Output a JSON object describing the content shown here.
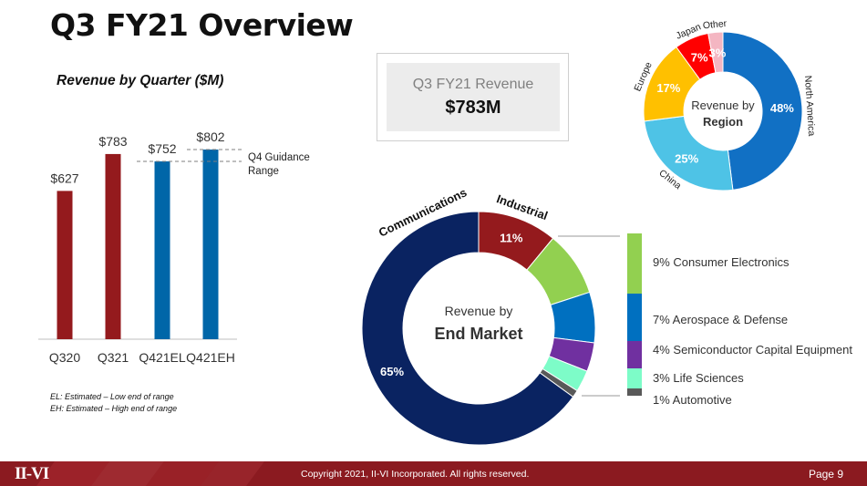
{
  "page": {
    "title": "Q3 FY21 Overview",
    "footer": {
      "copyright": "Copyright 2021, II-VI Incorporated. All rights reserved.",
      "page_number": "Page 9",
      "logo": "II-VI"
    }
  },
  "revenue_box": {
    "label": "Q3 FY21 Revenue",
    "value": "$783M"
  },
  "footnotes": [
    "EL: Estimated – Low end of range",
    "EH: Estimated – High end of range"
  ],
  "chart_data": [
    {
      "type": "bar",
      "title": "Revenue by Quarter ($M)",
      "categories": [
        "Q320",
        "Q321",
        "Q421EL",
        "Q421EH"
      ],
      "values": [
        627,
        783,
        752,
        802
      ],
      "data_labels": [
        "$627",
        "$783",
        "$752",
        "$802"
      ],
      "colors": [
        "#941a1d",
        "#941a1d",
        "#0066a8",
        "#0066a8"
      ],
      "ylim": [
        0,
        802
      ],
      "annotation": "Q4 Guidance Range",
      "annotation_range": [
        752,
        802
      ],
      "xlabel": "",
      "ylabel": ""
    },
    {
      "type": "pie",
      "subtype": "donut",
      "title": "Revenue by Region",
      "center_line1": "Revenue by",
      "center_line2": "Region",
      "slices": [
        {
          "name": "North America",
          "value": 48,
          "label": "48%",
          "color": "#1170c4"
        },
        {
          "name": "China",
          "value": 25,
          "label": "25%",
          "color": "#4ec3e6"
        },
        {
          "name": "Europe",
          "value": 17,
          "label": "17%",
          "color": "#ffc000"
        },
        {
          "name": "Japan",
          "value": 7,
          "label": "7%",
          "color": "#ff0000"
        },
        {
          "name": "Other",
          "value": 3,
          "label": "3%",
          "color": "#f4b6c2"
        }
      ]
    },
    {
      "type": "pie",
      "subtype": "donut",
      "title": "Revenue by End Market",
      "center_line1": "Revenue by",
      "center_line2": "End Market",
      "slices": [
        {
          "name": "Industrial",
          "value": 11,
          "label": "11%",
          "color": "#941a1d"
        },
        {
          "name": "Consumer Electronics",
          "value": 9,
          "color": "#92d050"
        },
        {
          "name": "Aerospace & Defense",
          "value": 7,
          "color": "#0070c0"
        },
        {
          "name": "Semiconductor Capital Equipment",
          "value": 4,
          "color": "#7030a0"
        },
        {
          "name": "Life Sciences",
          "value": 3,
          "color": "#7dfcc8"
        },
        {
          "name": "Automotive",
          "value": 1,
          "color": "#595959"
        },
        {
          "name": "Communications",
          "value": 65,
          "label": "65%",
          "color": "#0a2361"
        }
      ],
      "legend": [
        "9% Consumer Electronics",
        "7% Aerospace & Defense",
        "4% Semiconductor Capital Equipment",
        "3% Life Sciences",
        "1% Automotive"
      ]
    }
  ]
}
